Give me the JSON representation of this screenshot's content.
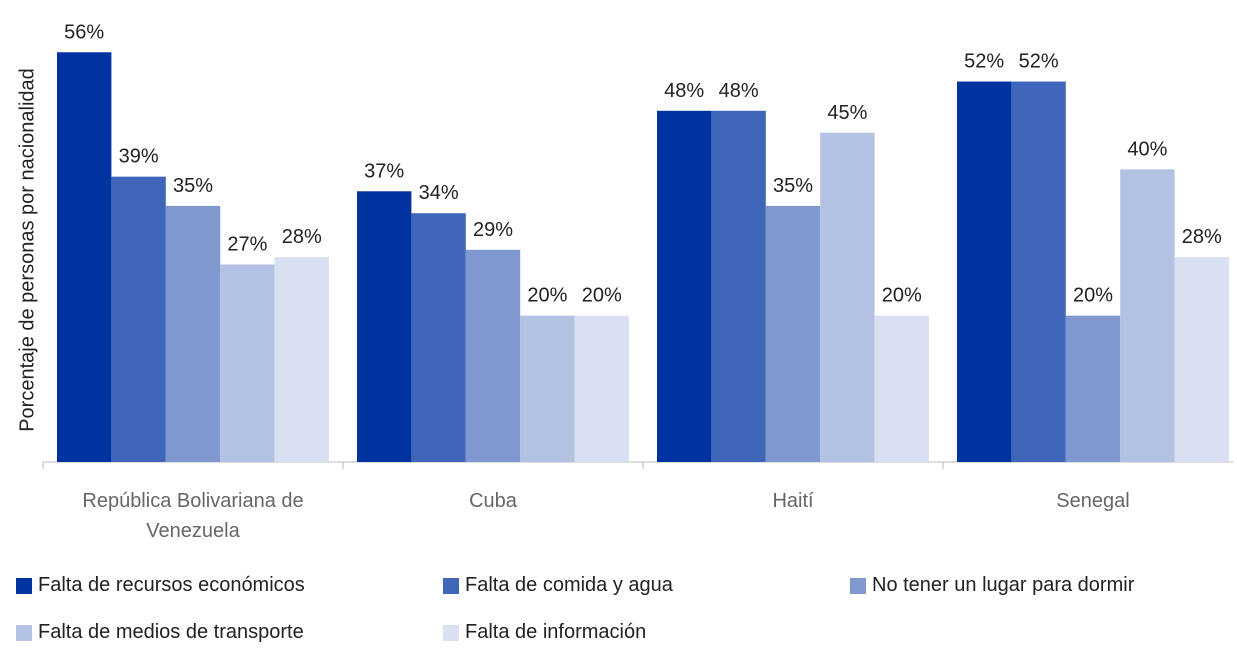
{
  "chart_data": {
    "type": "bar",
    "y_label": "Porcentaje de personas por nacionalidad",
    "categories": [
      "República Bolivariana de Venezuela",
      "Cuba",
      "Haití",
      "Senegal"
    ],
    "ylim": [
      0,
      60
    ],
    "legend": "bottom",
    "series": [
      {
        "name": "Falta de recursos económicos",
        "color": "#0033a0",
        "values": [
          56,
          37,
          48,
          52
        ],
        "value_labels": [
          "56%",
          "37%",
          "48%",
          "52%"
        ]
      },
      {
        "name": "Falta de comida y agua",
        "color": "#3f66b8",
        "values": [
          39,
          34,
          48,
          52
        ],
        "value_labels": [
          "39%",
          "34%",
          "48%",
          "52%"
        ]
      },
      {
        "name": "No tener un lugar para dormir",
        "color": "#7f98d0",
        "values": [
          35,
          29,
          35,
          20
        ],
        "value_labels": [
          "35%",
          "29%",
          "35%",
          "20%"
        ]
      },
      {
        "name": "Falta de medios de transporte",
        "color": "#b3c2e3",
        "values": [
          27,
          20,
          45,
          40
        ],
        "value_labels": [
          "27%",
          "20%",
          "45%",
          "40%"
        ]
      },
      {
        "name": "Falta de información",
        "color": "#d9e0f1",
        "values": [
          28,
          20,
          20,
          28
        ],
        "value_labels": [
          "28%",
          "20%",
          "20%",
          "28%"
        ]
      }
    ]
  }
}
